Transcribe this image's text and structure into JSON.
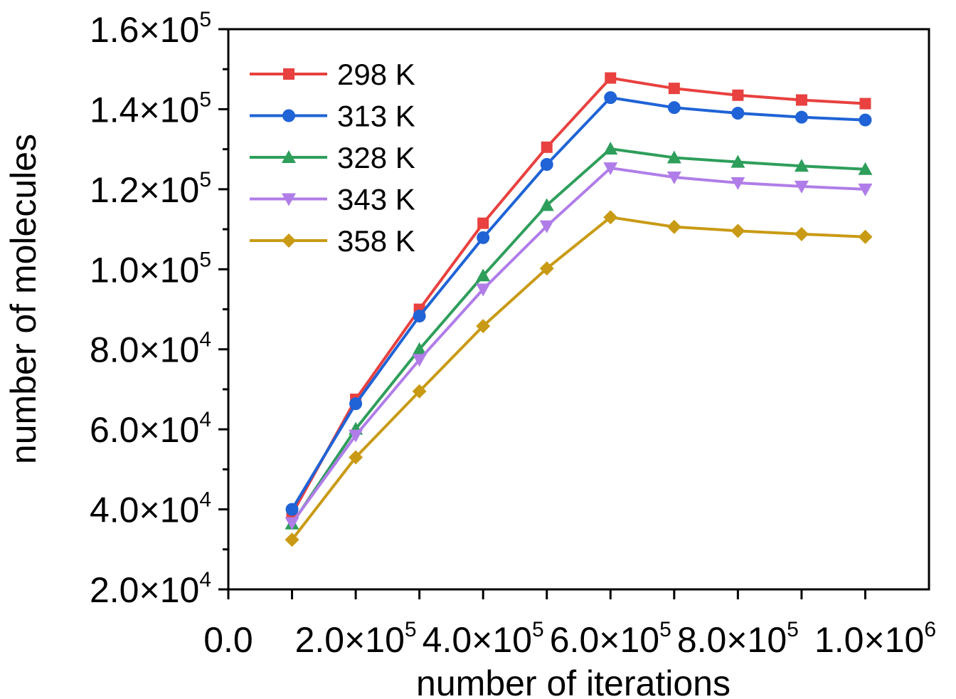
{
  "chart_data": {
    "type": "line",
    "title": "",
    "xlabel": "number of iterations",
    "ylabel": "number of molecules",
    "xlim": [
      0,
      1100000
    ],
    "ylim": [
      20000,
      160000
    ],
    "grid": false,
    "legend_position": "top-left",
    "x": [
      100000,
      200000,
      300000,
      400000,
      500000,
      600000,
      700000,
      800000,
      900000,
      1000000
    ],
    "x_ticks": [
      {
        "value": 0,
        "mantissa": "0.0",
        "exp": ""
      },
      {
        "value": 200000,
        "mantissa": "2.0×10",
        "exp": "5"
      },
      {
        "value": 400000,
        "mantissa": "4.0×10",
        "exp": "5"
      },
      {
        "value": 600000,
        "mantissa": "6.0×10",
        "exp": "5"
      },
      {
        "value": 800000,
        "mantissa": "8.0×10",
        "exp": "5"
      },
      {
        "value": 1000000,
        "mantissa": "1.0×10",
        "exp": "6"
      }
    ],
    "y_ticks": [
      {
        "value": 20000,
        "mantissa": "2.0×10",
        "exp": "4"
      },
      {
        "value": 40000,
        "mantissa": "4.0×10",
        "exp": "4"
      },
      {
        "value": 60000,
        "mantissa": "6.0×10",
        "exp": "4"
      },
      {
        "value": 80000,
        "mantissa": "8.0×10",
        "exp": "4"
      },
      {
        "value": 100000,
        "mantissa": "1.0×10",
        "exp": "5"
      },
      {
        "value": 120000,
        "mantissa": "1.2×10",
        "exp": "5"
      },
      {
        "value": 140000,
        "mantissa": "1.4×10",
        "exp": "5"
      },
      {
        "value": 160000,
        "mantissa": "1.6×10",
        "exp": "5"
      }
    ],
    "series": [
      {
        "name": "298 K",
        "color": "#e8413f",
        "marker": "square",
        "values": [
          38800,
          67500,
          90000,
          111500,
          130500,
          147800,
          145200,
          143500,
          142300,
          141400
        ]
      },
      {
        "name": "313 K",
        "color": "#1f63d6",
        "marker": "circle",
        "values": [
          40000,
          66400,
          88300,
          107900,
          126200,
          142900,
          140400,
          139000,
          138000,
          137300
        ]
      },
      {
        "name": "328 K",
        "color": "#2e9e5b",
        "marker": "triangle-up",
        "values": [
          36400,
          60100,
          80000,
          98400,
          116000,
          130100,
          127900,
          126800,
          125800,
          125000
        ]
      },
      {
        "name": "343 K",
        "color": "#b07de8",
        "marker": "triangle-down",
        "values": [
          36600,
          58500,
          77400,
          95000,
          110800,
          125300,
          123000,
          121600,
          120700,
          120000
        ]
      },
      {
        "name": "358 K",
        "color": "#c99a14",
        "marker": "diamond",
        "values": [
          32400,
          53000,
          69500,
          85800,
          100200,
          113000,
          110600,
          109600,
          108800,
          108100
        ]
      }
    ]
  }
}
